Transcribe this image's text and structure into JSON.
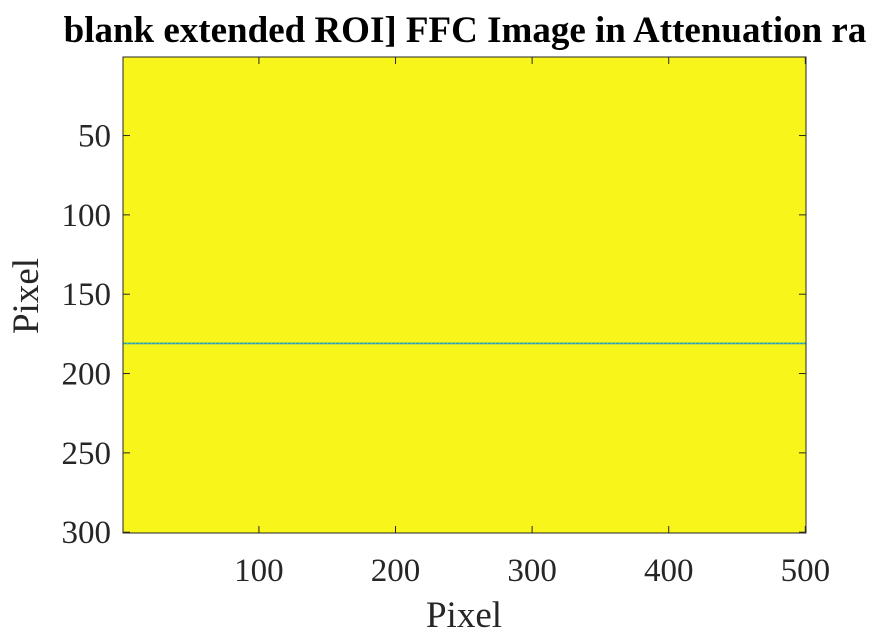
{
  "chart_data": {
    "type": "heatmap",
    "title": "blank extended ROI] FFC Image in Attenuation ra",
    "xlabel": "Pixel",
    "ylabel": "Pixel",
    "xlim": [
      0.5,
      500.5
    ],
    "ylim": [
      0.5,
      300.5
    ],
    "y_reversed": true,
    "x_ticks": [
      100,
      200,
      300,
      400,
      500
    ],
    "x_tick_labels": [
      "100",
      "200",
      "300",
      "400",
      "500"
    ],
    "y_ticks": [
      50,
      100,
      150,
      200,
      250,
      300
    ],
    "y_tick_labels": [
      "50",
      "100",
      "150",
      "200",
      "250",
      "300"
    ],
    "fill_color": "#f7f519",
    "line_feature": {
      "row": 181,
      "colors": [
        "#1fa2be",
        "#f7f519"
      ]
    },
    "grid": false
  }
}
